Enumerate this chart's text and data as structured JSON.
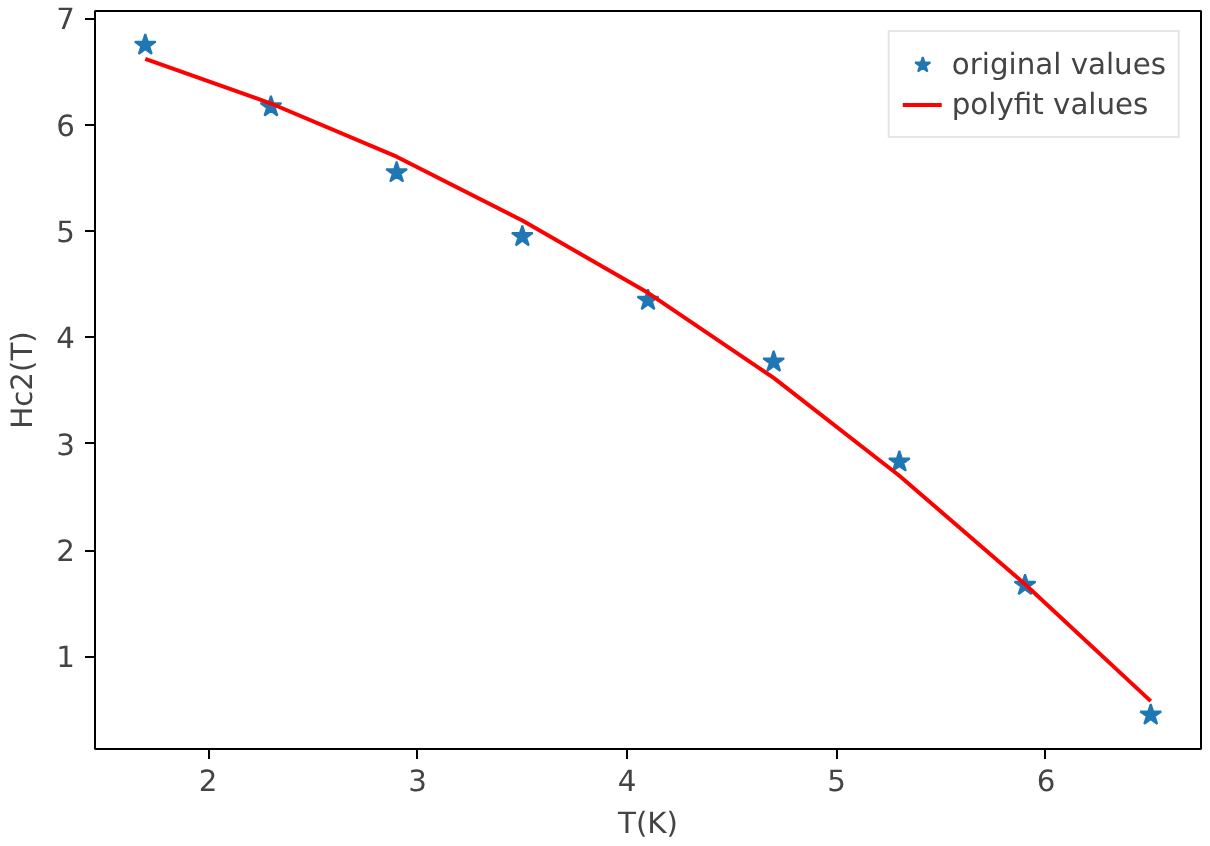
{
  "chart_data": {
    "type": "scatter",
    "xlabel": "T(K)",
    "ylabel": "Hc2(T)",
    "x": [
      1.7,
      2.3,
      2.9,
      3.5,
      4.1,
      4.7,
      5.3,
      5.9,
      6.5
    ],
    "series": [
      {
        "name": "original values",
        "marker": "star",
        "color": "#1f77b4",
        "values": [
          6.75,
          6.17,
          5.55,
          4.95,
          4.35,
          3.77,
          2.83,
          1.67,
          0.45
        ]
      },
      {
        "name": "polyfit values",
        "type": "line",
        "marker": "none",
        "line_style": "solid",
        "color": "#ff0000",
        "values": [
          6.62,
          6.2,
          5.7,
          5.1,
          4.42,
          3.62,
          2.7,
          1.68,
          0.58
        ]
      }
    ],
    "xlim": [
      1.46,
      6.74
    ],
    "ylim": [
      0.13,
      7.07
    ],
    "xticks": [
      2,
      3,
      4,
      5,
      6
    ],
    "yticks": [
      1,
      2,
      3,
      4,
      5,
      6,
      7
    ],
    "grid": false,
    "legend": "top right"
  }
}
